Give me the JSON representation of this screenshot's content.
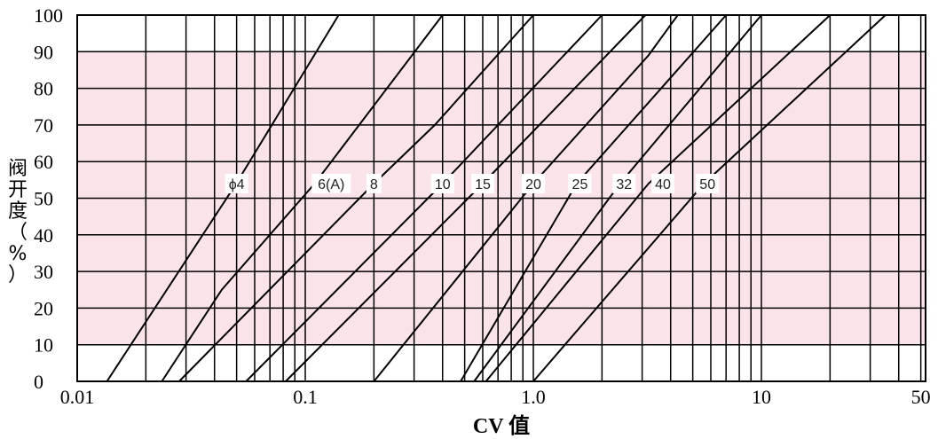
{
  "chart_data": {
    "type": "line",
    "title": "",
    "xlabel": "CV 值",
    "ylabel": "阀开度（%）",
    "x_scale": "log",
    "xlim": [
      0.01,
      50
    ],
    "ylim": [
      0,
      100
    ],
    "x_tick_labels": [
      "0.01",
      "0.1",
      "1.0",
      "10",
      "50"
    ],
    "x_tick_values": [
      0.01,
      0.1,
      1.0,
      10,
      50
    ],
    "y_ticks": [
      0,
      10,
      20,
      30,
      40,
      50,
      60,
      70,
      80,
      90,
      100
    ],
    "shaded_band": {
      "y_from": 10,
      "y_to": 90,
      "color": "#fbe3ea"
    },
    "grid": true,
    "series": [
      {
        "name": "ϕ4",
        "points": [
          [
            0.0135,
            0
          ],
          [
            0.0498,
            54
          ],
          [
            0.14,
            100
          ]
        ]
      },
      {
        "name": "6(A)",
        "points": [
          [
            0.0235,
            0
          ],
          [
            0.043,
            25
          ],
          [
            0.11,
            54
          ],
          [
            0.4,
            100
          ]
        ]
      },
      {
        "name": "8",
        "points": [
          [
            0.028,
            0
          ],
          [
            0.2,
            54
          ],
          [
            0.37,
            70
          ],
          [
            1.0,
            100
          ]
        ]
      },
      {
        "name": "10",
        "points": [
          [
            0.055,
            0
          ],
          [
            0.4,
            54
          ],
          [
            2.0,
            100
          ]
        ]
      },
      {
        "name": "15",
        "points": [
          [
            0.082,
            0
          ],
          [
            0.6,
            54
          ],
          [
            3.1,
            100
          ]
        ]
      },
      {
        "name": "20",
        "points": [
          [
            0.2,
            0
          ],
          [
            1.0,
            54
          ],
          [
            3.2,
            89
          ],
          [
            4.3,
            100
          ]
        ]
      },
      {
        "name": "25",
        "points": [
          [
            0.48,
            0
          ],
          [
            1.55,
            54
          ],
          [
            7.0,
            100
          ]
        ]
      },
      {
        "name": "32",
        "points": [
          [
            0.55,
            0
          ],
          [
            2.4,
            54
          ],
          [
            10,
            100
          ]
        ]
      },
      {
        "name": "40",
        "points": [
          [
            0.62,
            0
          ],
          [
            3.2,
            54
          ],
          [
            20,
            100
          ]
        ]
      },
      {
        "name": "50",
        "points": [
          [
            1.0,
            0
          ],
          [
            5.6,
            54
          ],
          [
            35,
            100
          ]
        ]
      }
    ],
    "curve_labels": [
      {
        "text": "ϕ4",
        "x": 0.05,
        "y": 54
      },
      {
        "text": "6(A)",
        "x": 0.13,
        "y": 54
      },
      {
        "text": "8",
        "x": 0.2,
        "y": 54
      },
      {
        "text": "10",
        "x": 0.4,
        "y": 54
      },
      {
        "text": "15",
        "x": 0.6,
        "y": 54
      },
      {
        "text": "20",
        "x": 1.0,
        "y": 54
      },
      {
        "text": "25",
        "x": 1.6,
        "y": 54
      },
      {
        "text": "32",
        "x": 2.5,
        "y": 54
      },
      {
        "text": "40",
        "x": 3.7,
        "y": 54
      },
      {
        "text": "50",
        "x": 5.8,
        "y": 54
      }
    ]
  }
}
